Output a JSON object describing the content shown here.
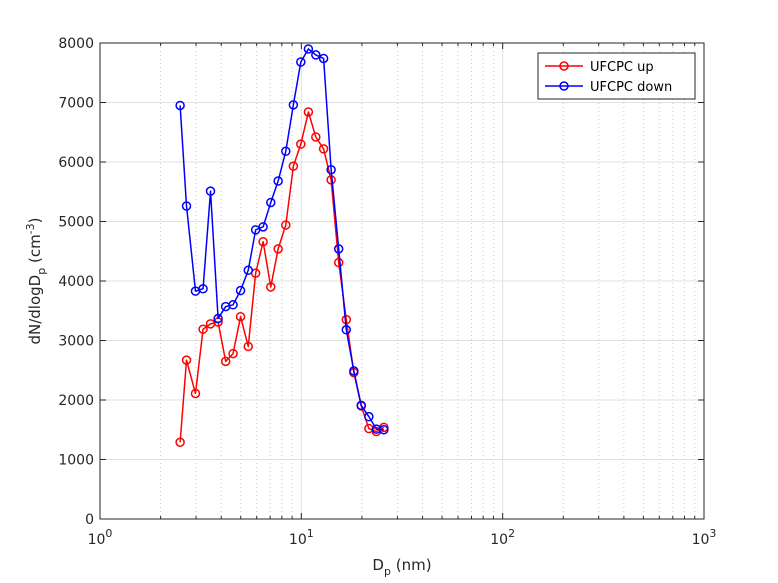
{
  "chart_data": {
    "type": "line",
    "x_scale": "log",
    "xlim": [
      1,
      1000
    ],
    "ylim": [
      0,
      8000
    ],
    "grid": true,
    "legend_position": "top-right",
    "x_ticks": [
      {
        "value": 1,
        "base": "10",
        "exp": "0"
      },
      {
        "value": 10,
        "base": "10",
        "exp": "1"
      },
      {
        "value": 100,
        "base": "10",
        "exp": "2"
      },
      {
        "value": 1000,
        "base": "10",
        "exp": "3"
      }
    ],
    "y_ticks": [
      {
        "value": 0,
        "label": "0"
      },
      {
        "value": 1000,
        "label": "1000"
      },
      {
        "value": 2000,
        "label": "2000"
      },
      {
        "value": 3000,
        "label": "3000"
      },
      {
        "value": 4000,
        "label": "4000"
      },
      {
        "value": 5000,
        "label": "5000"
      },
      {
        "value": 6000,
        "label": "6000"
      },
      {
        "value": 7000,
        "label": "7000"
      },
      {
        "value": 8000,
        "label": "8000"
      }
    ],
    "xlabel": {
      "main": "D",
      "sub": "p",
      "suffix": " (nm)"
    },
    "ylabel": {
      "main": "dN/dlogD",
      "sub": "p",
      "mid": " (cm",
      "sup": "-3",
      "suffix": ")"
    },
    "series": [
      {
        "name": "UFCPC up",
        "color": "#ff0000",
        "x": [
          2.5,
          2.69,
          2.98,
          3.25,
          3.54,
          3.86,
          4.21,
          4.58,
          4.99,
          5.45,
          5.93,
          6.46,
          7.05,
          7.67,
          8.37,
          9.13,
          9.94,
          10.84,
          11.8,
          12.9,
          14.06,
          15.33,
          16.72,
          18.23,
          19.84,
          21.65,
          23.6,
          25.7
        ],
        "y": [
          1290,
          2670,
          2110,
          3190,
          3280,
          3310,
          2650,
          2780,
          3400,
          2900,
          4130,
          4660,
          3900,
          4540,
          4940,
          5930,
          6300,
          6840,
          6420,
          6220,
          5700,
          4310,
          3350,
          2460,
          1900,
          1520,
          1470,
          1540
        ]
      },
      {
        "name": "UFCPC down",
        "color": "#0000ff",
        "x": [
          2.5,
          2.69,
          2.98,
          3.25,
          3.54,
          3.86,
          4.21,
          4.58,
          4.99,
          5.45,
          5.93,
          6.46,
          7.05,
          7.67,
          8.37,
          9.13,
          9.94,
          10.84,
          11.8,
          12.9,
          14.06,
          15.33,
          16.72,
          18.23,
          19.84,
          21.65,
          23.6,
          25.7
        ],
        "y": [
          6950,
          5260,
          3830,
          3870,
          5510,
          3370,
          3570,
          3600,
          3840,
          4180,
          4860,
          4910,
          5320,
          5680,
          6180,
          6960,
          7680,
          7900,
          7800,
          7740,
          5870,
          4540,
          3180,
          2490,
          1910,
          1720,
          1510,
          1500
        ]
      }
    ]
  }
}
